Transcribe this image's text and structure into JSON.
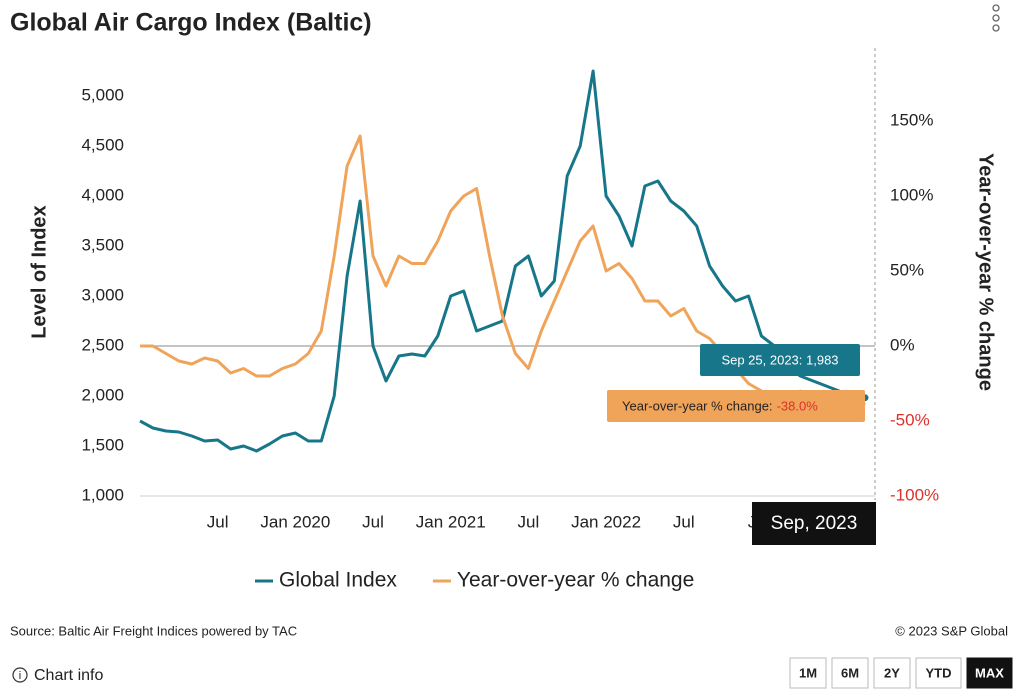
{
  "chart_data": {
    "type": "line",
    "title": "Global Air Cargo Index (Baltic)",
    "ylabel": "Level of Index",
    "y2label": "Year-over-year % change",
    "x": [
      "2019-01",
      "2019-02",
      "2019-03",
      "2019-04",
      "2019-05",
      "2019-06",
      "2019-07",
      "2019-08",
      "2019-09",
      "2019-10",
      "2019-11",
      "2019-12",
      "2020-01",
      "2020-02",
      "2020-03",
      "2020-04",
      "2020-05",
      "2020-06",
      "2020-07",
      "2020-08",
      "2020-09",
      "2020-10",
      "2020-11",
      "2020-12",
      "2021-01",
      "2021-02",
      "2021-03",
      "2021-04",
      "2021-05",
      "2021-06",
      "2021-07",
      "2021-08",
      "2021-09",
      "2021-10",
      "2021-11",
      "2021-12",
      "2022-01",
      "2022-02",
      "2022-03",
      "2022-04",
      "2022-05",
      "2022-06",
      "2022-07",
      "2022-08",
      "2022-09",
      "2022-10",
      "2022-11",
      "2022-12",
      "2023-01",
      "2023-02",
      "2023-03",
      "2023-04",
      "2023-05",
      "2023-06",
      "2023-07",
      "2023-08",
      "2023-09"
    ],
    "series": [
      {
        "name": "Global Index",
        "color": "#17768a",
        "axis": "y",
        "values": [
          1750,
          1680,
          1650,
          1640,
          1600,
          1550,
          1560,
          1470,
          1500,
          1450,
          1520,
          1600,
          1630,
          1550,
          1550,
          2000,
          3200,
          3950,
          2500,
          2150,
          2400,
          2420,
          2400,
          2600,
          3000,
          3050,
          2650,
          2700,
          2750,
          3300,
          3400,
          3000,
          3150,
          4200,
          4500,
          5250,
          4000,
          3800,
          3500,
          4100,
          4150,
          3950,
          3850,
          3700,
          3300,
          3100,
          2950,
          3000,
          2600,
          2500,
          2300,
          2200,
          2150,
          2100,
          2050,
          2000,
          1983
        ]
      },
      {
        "name": "Year-over-year % change",
        "color": "#f0a45a",
        "axis": "y2",
        "values": [
          0,
          0,
          -5,
          -10,
          -12,
          -8,
          -10,
          -18,
          -15,
          -20,
          -20,
          -15,
          -12,
          -5,
          10,
          60,
          120,
          140,
          60,
          40,
          60,
          55,
          55,
          70,
          90,
          100,
          105,
          60,
          20,
          -5,
          -15,
          10,
          30,
          50,
          70,
          80,
          50,
          55,
          45,
          30,
          30,
          20,
          25,
          10,
          5,
          -5,
          -15,
          -25,
          -30,
          -40,
          -35,
          -30,
          -35,
          -40,
          -40,
          -45,
          -38
        ]
      }
    ],
    "ylim": [
      1000,
      5400
    ],
    "yticks": [
      {
        "value": 1000,
        "label": "1,000"
      },
      {
        "value": 1500,
        "label": "1,500"
      },
      {
        "value": 2000,
        "label": "2,000"
      },
      {
        "value": 2500,
        "label": "2,500"
      },
      {
        "value": 3000,
        "label": "3,000"
      },
      {
        "value": 3500,
        "label": "3,500"
      },
      {
        "value": 4000,
        "label": "4,000"
      },
      {
        "value": 4500,
        "label": "4,500"
      },
      {
        "value": 5000,
        "label": "5,000"
      }
    ],
    "y2lim": [
      -100,
      193.3
    ],
    "y2ticks": [
      {
        "value": -100,
        "label": "-100%"
      },
      {
        "value": -50,
        "label": "-50%"
      },
      {
        "value": 0,
        "label": "0%"
      },
      {
        "value": 50,
        "label": "50%"
      },
      {
        "value": 100,
        "label": "100%"
      },
      {
        "value": 150,
        "label": "150%"
      }
    ],
    "xticks": [
      {
        "value": "2019-07",
        "label": "Jul"
      },
      {
        "value": "2020-01",
        "label": "Jan 2020"
      },
      {
        "value": "2020-07",
        "label": "Jul"
      },
      {
        "value": "2021-01",
        "label": "Jan 2021"
      },
      {
        "value": "2021-07",
        "label": "Jul"
      },
      {
        "value": "2022-01",
        "label": "Jan 2022"
      },
      {
        "value": "2022-07",
        "label": "Jul"
      },
      {
        "value": "2023-01",
        "label": "Jan"
      }
    ],
    "negative_color": "#e0302a",
    "legend": "bottom",
    "crosshair_label": "Sep, 2023",
    "tooltip": {
      "index": "Sep 25, 2023: 1,983",
      "yoy_prefix": "Year-over-year % change:",
      "yoy_value": "-38.0%"
    }
  },
  "footer": {
    "source": "Source: Baltic Air Freight Indices powered by TAC",
    "copyright": "© 2023 S&P Global",
    "info": "Chart info",
    "ranges": [
      "1M",
      "6M",
      "2Y",
      "YTD",
      "MAX"
    ],
    "active_range": "MAX"
  }
}
